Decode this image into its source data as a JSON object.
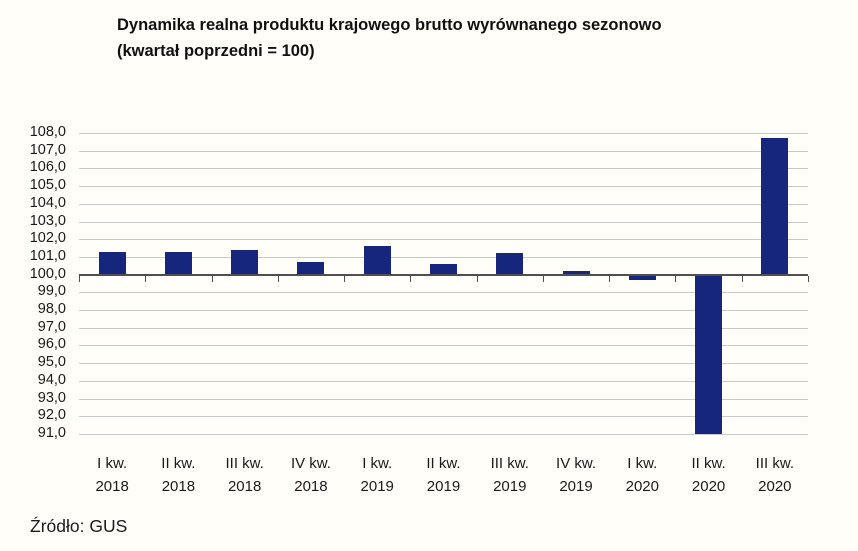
{
  "chart_data": {
    "type": "bar",
    "title": "Dynamika realna produktu krajowego brutto wyrównanego sezonowo",
    "subtitle": "(kwartał poprzedni = 100)",
    "categories": [
      {
        "quarter": "I kw.",
        "year": "2018"
      },
      {
        "quarter": "II kw.",
        "year": "2018"
      },
      {
        "quarter": "III kw.",
        "year": "2018"
      },
      {
        "quarter": "IV kw.",
        "year": "2018"
      },
      {
        "quarter": "I kw.",
        "year": "2019"
      },
      {
        "quarter": "II kw.",
        "year": "2019"
      },
      {
        "quarter": "III kw.",
        "year": "2019"
      },
      {
        "quarter": "IV kw.",
        "year": "2019"
      },
      {
        "quarter": "I kw.",
        "year": "2020"
      },
      {
        "quarter": "II kw.",
        "year": "2020"
      },
      {
        "quarter": "III kw.",
        "year": "2020"
      }
    ],
    "values": [
      101.3,
      101.3,
      101.4,
      100.7,
      101.6,
      100.6,
      101.2,
      100.2,
      99.7,
      91.0,
      107.7
    ],
    "ylim": [
      91.0,
      108.0
    ],
    "ytick_step": 1.0,
    "ytick_decimal_separator": ",",
    "baseline": 100.0,
    "xlabel": "",
    "ylabel": "",
    "grid": true,
    "legend": "none",
    "bar_color": "#17267d",
    "gridline_color": "#c8c8c8",
    "axis_color": "#4f4f4f",
    "source": "Źródło: GUS"
  }
}
